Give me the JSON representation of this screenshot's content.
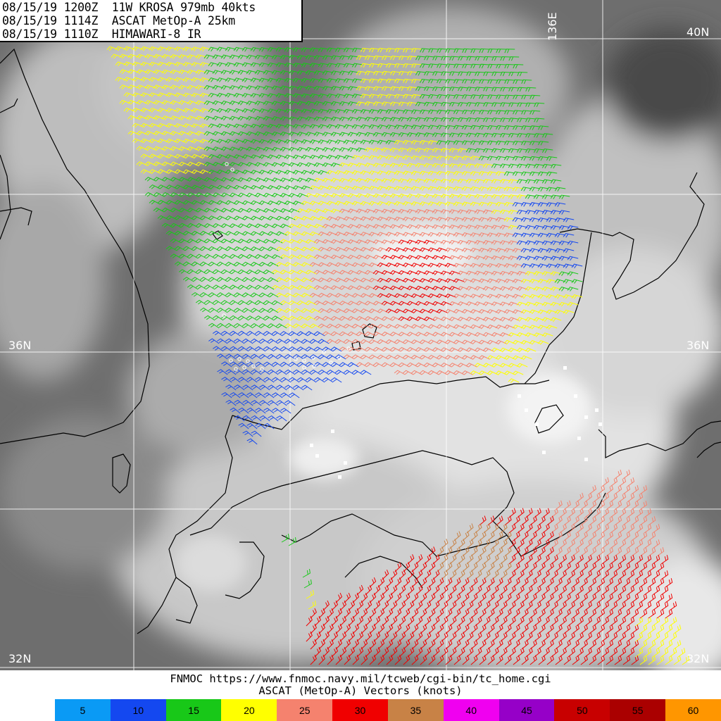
{
  "header": {
    "line1": "08/15/19 1200Z  11W KROSA 979mb 40kts",
    "line2": "08/15/19 1114Z  ASCAT MetOp-A 25km",
    "line3": "08/15/19 1110Z  HIMAWARI-8 IR"
  },
  "grid_labels": {
    "lat_40_right": "40N",
    "lat_36_left": "36N",
    "lat_36_right": "36N",
    "lat_32_left": "32N",
    "lat_32_right": "32N",
    "lon_136": "136E"
  },
  "footer": {
    "line1": "FNMOC https://www.fnmoc.navy.mil/tcweb/cgi-bin/tc_home.cgi",
    "line2": "ASCAT (MetOp-A) Vectors (knots)"
  },
  "legend": [
    {
      "label": "5",
      "color": "#0a9af5"
    },
    {
      "label": "10",
      "color": "#1448f0"
    },
    {
      "label": "15",
      "color": "#18c818"
    },
    {
      "label": "20",
      "color": "#ffff00"
    },
    {
      "label": "25",
      "color": "#f5826e"
    },
    {
      "label": "30",
      "color": "#f00000"
    },
    {
      "label": "35",
      "color": "#c88246"
    },
    {
      "label": "40",
      "color": "#f000f0"
    },
    {
      "label": "45",
      "color": "#9600c8"
    },
    {
      "label": "50",
      "color": "#c80000"
    },
    {
      "label": "55",
      "color": "#aa0000"
    },
    {
      "label": "60",
      "color": "#ff9600"
    }
  ]
}
